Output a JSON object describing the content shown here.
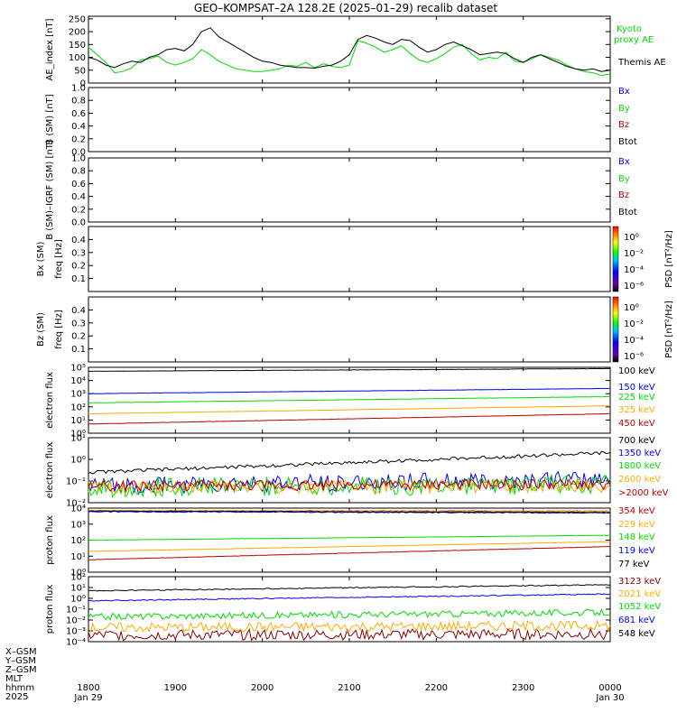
{
  "title": "GEO–KOMPSAT–2A 128.2E (2025–01–29) recalib dataset",
  "colors": {
    "black": "#000000",
    "blue": "#0000ff",
    "green": "#00dd00",
    "red": "#bb0000",
    "orange": "#ffaa00",
    "darkred": "#880000",
    "navy": "#000080"
  },
  "x_axis": {
    "ticks": [
      "1800",
      "1900",
      "2000",
      "2100",
      "2200",
      "2300",
      "0000"
    ],
    "tick_hours": [
      18,
      19,
      20,
      21,
      22,
      23,
      24
    ],
    "range_hours": [
      18,
      24
    ],
    "left_labels": [
      "X–GSM",
      "Y–GSM",
      "Z–GSM",
      "MLT",
      "hhmm",
      "2025"
    ],
    "date_start": "Jan 29",
    "date_end": "Jan 30"
  },
  "chart_data": [
    {
      "type": "line",
      "ylabel": "AE_index [nT]",
      "ylim": [
        0,
        260
      ],
      "yticks": [
        "0",
        "50",
        "100",
        "150",
        "200",
        "250"
      ],
      "x_hours": [
        18.0,
        18.1,
        18.2,
        18.3,
        18.4,
        18.5,
        18.6,
        18.7,
        18.8,
        18.9,
        19.0,
        19.1,
        19.2,
        19.3,
        19.4,
        19.5,
        19.6,
        19.7,
        19.8,
        19.9,
        20.0,
        20.1,
        20.2,
        20.3,
        20.4,
        20.5,
        20.6,
        20.7,
        20.8,
        20.9,
        21.0,
        21.1,
        21.2,
        21.3,
        21.4,
        21.5,
        21.6,
        21.7,
        21.8,
        21.9,
        22.0,
        22.1,
        22.2,
        22.3,
        22.4,
        22.5,
        22.6,
        22.7,
        22.8,
        22.9,
        23.0,
        23.1,
        23.2,
        23.3,
        23.4,
        23.5,
        23.6,
        23.7,
        23.8,
        23.9,
        24.0
      ],
      "series": [
        {
          "name": "Kyoto proxy AE",
          "color": "#00dd00",
          "values": [
            140,
            110,
            80,
            40,
            45,
            60,
            90,
            95,
            105,
            80,
            70,
            80,
            95,
            130,
            110,
            85,
            70,
            55,
            50,
            45,
            45,
            50,
            55,
            70,
            65,
            80,
            60,
            75,
            65,
            60,
            70,
            165,
            155,
            140,
            120,
            130,
            145,
            115,
            90,
            80,
            95,
            115,
            140,
            150,
            115,
            90,
            100,
            95,
            120,
            85,
            80,
            95,
            110,
            100,
            90,
            70,
            55,
            45,
            40,
            30,
            35
          ]
        },
        {
          "name": "Themis AE",
          "color": "#000000",
          "values": [
            100,
            90,
            70,
            60,
            75,
            85,
            80,
            100,
            110,
            130,
            135,
            125,
            150,
            200,
            215,
            180,
            160,
            140,
            120,
            100,
            85,
            80,
            70,
            65,
            60,
            60,
            58,
            65,
            70,
            85,
            110,
            170,
            185,
            175,
            160,
            150,
            170,
            165,
            140,
            120,
            130,
            150,
            160,
            145,
            130,
            110,
            115,
            120,
            115,
            95,
            80,
            100,
            110,
            95,
            80,
            65,
            55,
            50,
            55,
            45,
            50
          ]
        }
      ],
      "legend": [
        "Kyoto",
        "proxy AE",
        "Themis AE"
      ]
    },
    {
      "type": "line",
      "ylabel": "B (SM) [nT]",
      "ylim": [
        0,
        1
      ],
      "yticks": [
        "0.0",
        "0.2",
        "0.4",
        "0.6",
        "0.8",
        "1.0"
      ],
      "series": [],
      "legend": [
        "Bx",
        "By",
        "Bz",
        "Btot"
      ]
    },
    {
      "type": "line",
      "ylabel": "B (SM)–IGRF (SM) [nT]",
      "ylim": [
        0,
        1
      ],
      "yticks": [
        "0.0",
        "0.2",
        "0.4",
        "0.6",
        "0.8",
        "1.0"
      ],
      "series": [],
      "legend": [
        "Bx",
        "By",
        "Bz",
        "Btot"
      ]
    },
    {
      "type": "heatmap",
      "ylabel_top": "Bx (SM)",
      "ylabel": "freq [Hz]",
      "ylim": [
        0,
        0.5
      ],
      "yticks": [
        "0.1",
        "0.2",
        "0.3",
        "0.4"
      ],
      "colorbar_label": "PSD [nT²/Hz]",
      "colorbar_ticks": [
        "10⁰",
        "10⁻²",
        "10⁻⁴",
        "10⁻⁶"
      ]
    },
    {
      "type": "heatmap",
      "ylabel_top": "Bz (SM)",
      "ylabel": "freq [Hz]",
      "ylim": [
        0,
        0.5
      ],
      "yticks": [
        "0.1",
        "0.2",
        "0.3",
        "0.4"
      ],
      "colorbar_label": "PSD [nT²/Hz]",
      "colorbar_ticks": [
        "10⁰",
        "10⁻²",
        "10⁻⁴",
        "10⁻⁶"
      ]
    },
    {
      "type": "line",
      "ylabel": "electron flux",
      "log": true,
      "ylim": [
        1,
        100000
      ],
      "yticks": [
        "10⁰",
        "10¹",
        "10²",
        "10³",
        "10⁴",
        "10⁵"
      ],
      "series": [
        {
          "name": "100 keV",
          "color": "#000000",
          "start": 50000,
          "end": 80000,
          "noise": 0.01
        },
        {
          "name": "150 keV",
          "color": "#0000ff",
          "start": 1000,
          "end": 2500,
          "noise": 0.01
        },
        {
          "name": "225 keV",
          "color": "#00dd00",
          "start": 200,
          "end": 600,
          "noise": 0.01
        },
        {
          "name": "325 keV",
          "color": "#ffaa00",
          "start": 30,
          "end": 120,
          "noise": 0.01
        },
        {
          "name": "450 keV",
          "color": "#bb0000",
          "start": 5,
          "end": 30,
          "noise": 0.01
        }
      ]
    },
    {
      "type": "line",
      "ylabel": "electron flux",
      "log": true,
      "ylim": [
        0.01,
        10
      ],
      "yticks": [
        "10⁻²",
        "10⁻¹",
        "10⁰",
        "10¹"
      ],
      "series": [
        {
          "name": "700 keV",
          "color": "#000000",
          "start": 0.25,
          "end": 2.0,
          "noise": 0.08
        },
        {
          "name": "1350 keV",
          "color": "#0000ff",
          "start": 0.06,
          "end": 0.12,
          "noise": 0.4
        },
        {
          "name": "1800 keV",
          "color": "#00dd00",
          "start": 0.05,
          "end": 0.07,
          "noise": 0.45
        },
        {
          "name": "2600 keV",
          "color": "#ffaa00",
          "start": 0.05,
          "end": 0.06,
          "noise": 0.3
        },
        {
          "name": ">2000 keV",
          "color": "#bb0000",
          "start": 0.06,
          "end": 0.07,
          "noise": 0.25
        }
      ]
    },
    {
      "type": "line",
      "ylabel": "proton flux",
      "log": true,
      "ylim": [
        1,
        10000
      ],
      "yticks": [
        "10⁰",
        "10¹",
        "10²",
        "10³",
        "10⁴"
      ],
      "series": [
        {
          "name": "354 keV",
          "color": "#bb0000",
          "start": 7000,
          "end": 6500,
          "noise": 0.02
        },
        {
          "name": "229 keV",
          "color": "#ffaa00",
          "start": 7000,
          "end": 6500,
          "noise": 0.02
        },
        {
          "name": "148 keV",
          "color": "#00dd00",
          "start": 100,
          "end": 200,
          "noise": 0.01
        },
        {
          "name": "119 keV",
          "color": "#0000ff",
          "start": 6000,
          "end": 5000,
          "noise": 0.03
        },
        {
          "name": "77 keV",
          "color": "#000000",
          "start": 6500,
          "end": 5500,
          "noise": 0.02
        },
        {
          "name": "",
          "color": "#ffaa00",
          "start": 20,
          "end": 80,
          "noise": 0.01
        },
        {
          "name": "",
          "color": "#bb0000",
          "start": 6,
          "end": 40,
          "noise": 0.01
        }
      ],
      "legend_colors": [
        "#bb0000",
        "#ffaa00",
        "#00dd00",
        "#0000ff",
        "#000000"
      ]
    },
    {
      "type": "line",
      "ylabel": "proton flux",
      "log": true,
      "ylim": [
        0.0001,
        100
      ],
      "yticks": [
        "10⁻⁴",
        "10⁻³",
        "10⁻²",
        "10⁻¹",
        "10⁰",
        "10¹",
        "10²"
      ],
      "series": [
        {
          "name": "3123 keV",
          "color": "#880000",
          "start": 0.0004,
          "end": 0.0005,
          "noise": 0.5
        },
        {
          "name": "2021 keV",
          "color": "#ffaa00",
          "start": 0.002,
          "end": 0.003,
          "noise": 0.45
        },
        {
          "name": "1052 keV",
          "color": "#00dd00",
          "start": 0.02,
          "end": 0.05,
          "noise": 0.3
        },
        {
          "name": "681 keV",
          "color": "#0000ff",
          "start": 0.6,
          "end": 2.5,
          "noise": 0.05
        },
        {
          "name": "548 keV",
          "color": "#000000",
          "start": 5,
          "end": 18,
          "noise": 0.05
        }
      ]
    }
  ]
}
